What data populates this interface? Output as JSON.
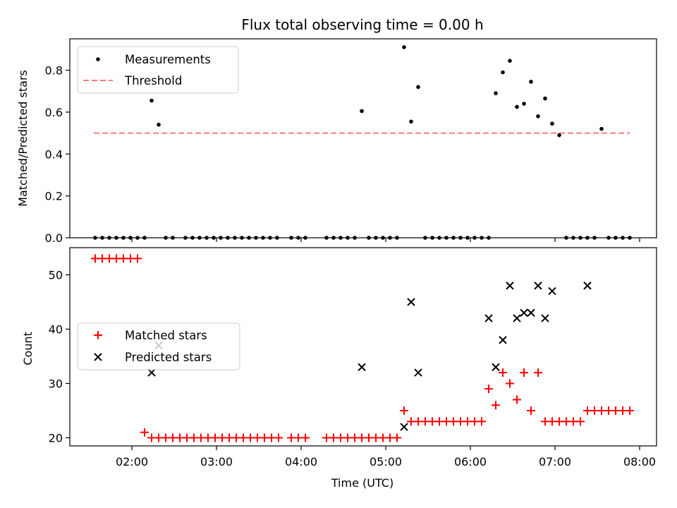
{
  "chart_data": [
    {
      "type": "scatter",
      "title": "Flux total observing time = 0.00 h",
      "ylabel": "Matched/Predicted stars",
      "xlim": [
        "01:16",
        "08:12"
      ],
      "ylim": [
        0,
        0.95
      ],
      "yticks": [
        "0.0",
        "0.2",
        "0.4",
        "0.6",
        "0.8"
      ],
      "ytick_values": [
        0,
        0.2,
        0.4,
        0.6,
        0.8
      ],
      "legend": {
        "placement": "upper-left",
        "entries": [
          "Measurements",
          "Threshold"
        ]
      },
      "threshold": {
        "name": "Threshold",
        "value": 0.5,
        "x_start": "01:33",
        "x_end": "07:53",
        "color": "#ff7b7b"
      },
      "series": [
        {
          "name": "Measurements",
          "color": "#000000",
          "x": [
            "01:34",
            "01:39",
            "01:44",
            "01:49",
            "01:54",
            "01:59",
            "02:04",
            "02:09",
            "02:14",
            "02:19",
            "02:24",
            "02:29",
            "02:38",
            "02:43",
            "02:48",
            "02:53",
            "02:58",
            "03:03",
            "03:08",
            "03:13",
            "03:18",
            "03:23",
            "03:28",
            "03:33",
            "03:38",
            "03:43",
            "03:53",
            "03:58",
            "04:03",
            "04:18",
            "04:23",
            "04:28",
            "04:33",
            "04:38",
            "04:43",
            "04:48",
            "04:53",
            "04:58",
            "05:03",
            "05:08",
            "05:13",
            "05:18",
            "05:23",
            "05:28",
            "05:33",
            "05:38",
            "05:43",
            "05:48",
            "05:53",
            "05:58",
            "06:03",
            "06:08",
            "06:13",
            "06:18",
            "06:23",
            "06:28",
            "06:33",
            "06:38",
            "06:43",
            "06:48",
            "06:53",
            "06:58",
            "07:03",
            "07:08",
            "07:13",
            "07:18",
            "07:23",
            "07:28",
            "07:33",
            "07:38",
            "07:43",
            "07:48",
            "07:53"
          ],
          "y": [
            0,
            0,
            0,
            0,
            0,
            0,
            0,
            0,
            0.655,
            0.54,
            0,
            0,
            0,
            0,
            0,
            0,
            0,
            0,
            0,
            0,
            0,
            0,
            0,
            0,
            0,
            0,
            0,
            0,
            0,
            0,
            0,
            0,
            0,
            0,
            0.605,
            0,
            0,
            0,
            0,
            0,
            0.91,
            0.555,
            0.72,
            0,
            0,
            0,
            0,
            0,
            0,
            0,
            0,
            0,
            0,
            0.69,
            0.79,
            0.845,
            0.625,
            0.64,
            0.745,
            0.58,
            0.665,
            0.545,
            0.49,
            0,
            0,
            0,
            0,
            0,
            0.52,
            0,
            0,
            0,
            0
          ]
        }
      ]
    },
    {
      "type": "scatter",
      "xlabel": "Time (UTC)",
      "ylabel": "Count",
      "xlim": [
        "01:16",
        "08:12"
      ],
      "ylim": [
        18.5,
        55
      ],
      "xticks": [
        "02:00",
        "03:00",
        "04:00",
        "05:00",
        "06:00",
        "07:00",
        "08:00"
      ],
      "yticks": [
        "20",
        "30",
        "40",
        "50"
      ],
      "ytick_values": [
        20,
        30,
        40,
        50
      ],
      "legend": {
        "placement": "center-left",
        "entries": [
          "Matched stars",
          "Predicted stars"
        ]
      },
      "series": [
        {
          "name": "Matched stars",
          "color": "#ff0000",
          "marker": "plus",
          "x": [
            "01:34",
            "01:39",
            "01:44",
            "01:49",
            "01:54",
            "01:59",
            "02:04",
            "02:09",
            "02:14",
            "02:19",
            "02:24",
            "02:29",
            "02:34",
            "02:39",
            "02:44",
            "02:49",
            "02:54",
            "02:59",
            "03:04",
            "03:09",
            "03:14",
            "03:19",
            "03:24",
            "03:29",
            "03:34",
            "03:39",
            "03:44",
            "03:53",
            "03:58",
            "04:03",
            "04:18",
            "04:23",
            "04:28",
            "04:33",
            "04:38",
            "04:43",
            "04:48",
            "04:53",
            "04:58",
            "05:03",
            "05:08",
            "05:13",
            "05:18",
            "05:23",
            "05:28",
            "05:33",
            "05:38",
            "05:43",
            "05:48",
            "05:53",
            "05:58",
            "06:03",
            "06:08",
            "06:13",
            "06:18",
            "06:23",
            "06:28",
            "06:33",
            "06:38",
            "06:43",
            "06:48",
            "06:53",
            "06:58",
            "07:03",
            "07:08",
            "07:13",
            "07:18",
            "07:23",
            "07:28",
            "07:33",
            "07:38",
            "07:43",
            "07:48",
            "07:53"
          ],
          "y": [
            53,
            53,
            53,
            53,
            53,
            53,
            53,
            21,
            20,
            20,
            20,
            20,
            20,
            20,
            20,
            20,
            20,
            20,
            20,
            20,
            20,
            20,
            20,
            20,
            20,
            20,
            20,
            20,
            20,
            20,
            20,
            20,
            20,
            20,
            20,
            20,
            20,
            20,
            20,
            20,
            20,
            25,
            23,
            23,
            23,
            23,
            23,
            23,
            23,
            23,
            23,
            23,
            23,
            29,
            26,
            32,
            30,
            27,
            32,
            25,
            32,
            23,
            23,
            23,
            23,
            23,
            23,
            25,
            25,
            25,
            25,
            25,
            25,
            25
          ]
        },
        {
          "name": "Predicted stars",
          "color": "#000000",
          "marker": "x",
          "x": [
            "02:14",
            "02:19",
            "04:43",
            "05:13",
            "05:18",
            "05:23",
            "06:13",
            "06:18",
            "06:23",
            "06:28",
            "06:33",
            "06:38",
            "06:43",
            "06:48",
            "06:53",
            "06:58",
            "07:23"
          ],
          "y": [
            32,
            37,
            33,
            22,
            45,
            32,
            42,
            33,
            38,
            48,
            42,
            43,
            43,
            48,
            42,
            47,
            48
          ]
        }
      ]
    }
  ]
}
